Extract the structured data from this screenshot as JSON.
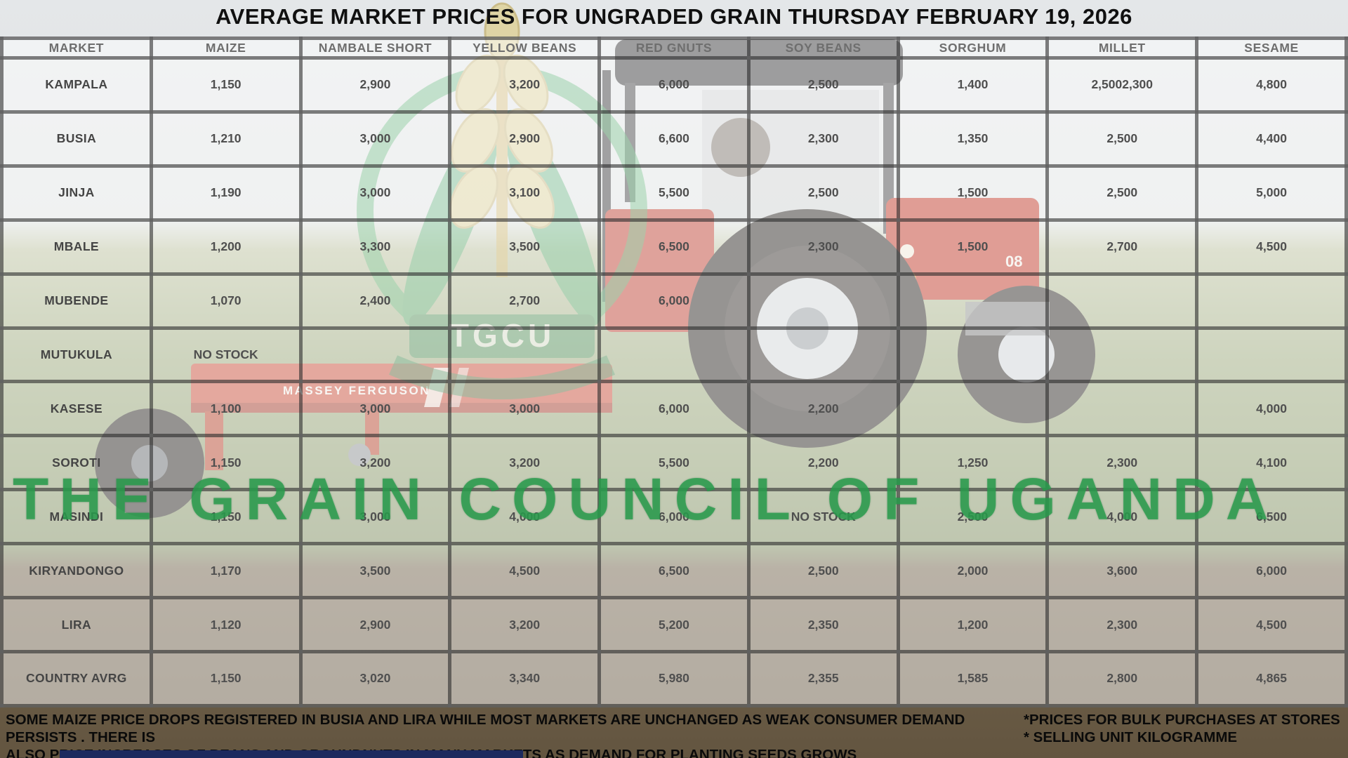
{
  "title": "AVERAGE MARKET PRICES FOR UNGRADED GRAIN THURSDAY FEBRUARY 19, 2026",
  "watermark": {
    "org_name": "THE GRAIN COUNCIL OF UGANDA",
    "logo_acronym": "TGCU"
  },
  "background_photo": {
    "implement_text": "MASSEY FERGUSON",
    "hood_text": "08"
  },
  "table": {
    "columns": [
      "MARKET",
      "MAIZE",
      "NAMBALE  SHORT",
      "YELLOW BEANS",
      "RED GNUTS",
      "SOY BEANS",
      "SORGHUM",
      "MILLET",
      "SESAME"
    ],
    "rows": [
      {
        "market": "KAMPALA",
        "values": [
          "1,150",
          "2,900",
          "3,200",
          "6,000",
          "2,500",
          "1,400",
          "2,5002,300",
          "4,800"
        ]
      },
      {
        "market": "BUSIA",
        "values": [
          "1,210",
          "3,000",
          "2,900",
          "6,600",
          "2,300",
          "1,350",
          "2,500",
          "4,400"
        ]
      },
      {
        "market": "JINJA",
        "values": [
          "1,190",
          "3,000",
          "3,100",
          "5,500",
          "2,500",
          "1,500",
          "2,500",
          "5,000"
        ]
      },
      {
        "market": "MBALE",
        "values": [
          "1,200",
          "3,300",
          "3,500",
          "6,500",
          "2,300",
          "1,500",
          "2,700",
          "4,500"
        ]
      },
      {
        "market": "MUBENDE",
        "values": [
          "1,070",
          "2,400",
          "2,700",
          "6,000",
          "",
          "",
          "",
          ""
        ]
      },
      {
        "market": "MUTUKULA",
        "values": [
          "NO STOCK",
          "",
          "",
          "",
          "",
          "",
          "",
          ""
        ]
      },
      {
        "market": "KASESE",
        "values": [
          "1,100",
          "3,000",
          "3,000",
          "6,000",
          "2,200",
          "",
          "",
          "4,000"
        ]
      },
      {
        "market": "SOROTI",
        "values": [
          "1,150",
          "3,200",
          "3,200",
          "5,500",
          "2,200",
          "1,250",
          "2,300",
          "4,100"
        ]
      },
      {
        "market": "MASINDI",
        "values": [
          "1,150",
          "3,000",
          "4,000",
          "6,000",
          "NO STOCK",
          "2,500",
          "4,000",
          "6,500"
        ]
      },
      {
        "market": "KIRYANDONGO",
        "values": [
          "1,170",
          "3,500",
          "4,500",
          "6,500",
          "2,500",
          "2,000",
          "3,600",
          "6,000"
        ]
      },
      {
        "market": "LIRA",
        "values": [
          "1,120",
          "2,900",
          "3,200",
          "5,200",
          "2,350",
          "1,200",
          "2,300",
          "4,500"
        ]
      },
      {
        "market": "COUNTRY AVRG",
        "values": [
          "1,150",
          "3,020",
          "3,340",
          "5,980",
          "2,355",
          "1,585",
          "2,800",
          "4,865"
        ]
      }
    ]
  },
  "footnotes": {
    "left_line1": "SOME MAIZE PRICE DROPS REGISTERED IN BUSIA AND LIRA WHILE MOST MARKETS ARE UNCHANGED AS WEAK CONSUMER  DEMAND PERSISTS . THERE IS",
    "left_line2": "ALSO PRICE INCREASES OF BEANS AND GROUNDNUTS IN MANY MARKETS  AS DEMAND FOR PLANTING SEEDS GROWS",
    "right_line1": "*PRICES FOR BULK PURCHASES AT STORES",
    "right_line2": "* SELLING UNIT KILOGRAMME"
  },
  "colors": {
    "grid_line": "#606060",
    "watermark_green": "#299e4d",
    "logo_banner_green": "#1f7c40",
    "wheat_yellow": "#d9c267",
    "tractor_red": "#c03a2b",
    "soil_brown": "#6f6049",
    "navy_bar": "#1c2a5e"
  }
}
